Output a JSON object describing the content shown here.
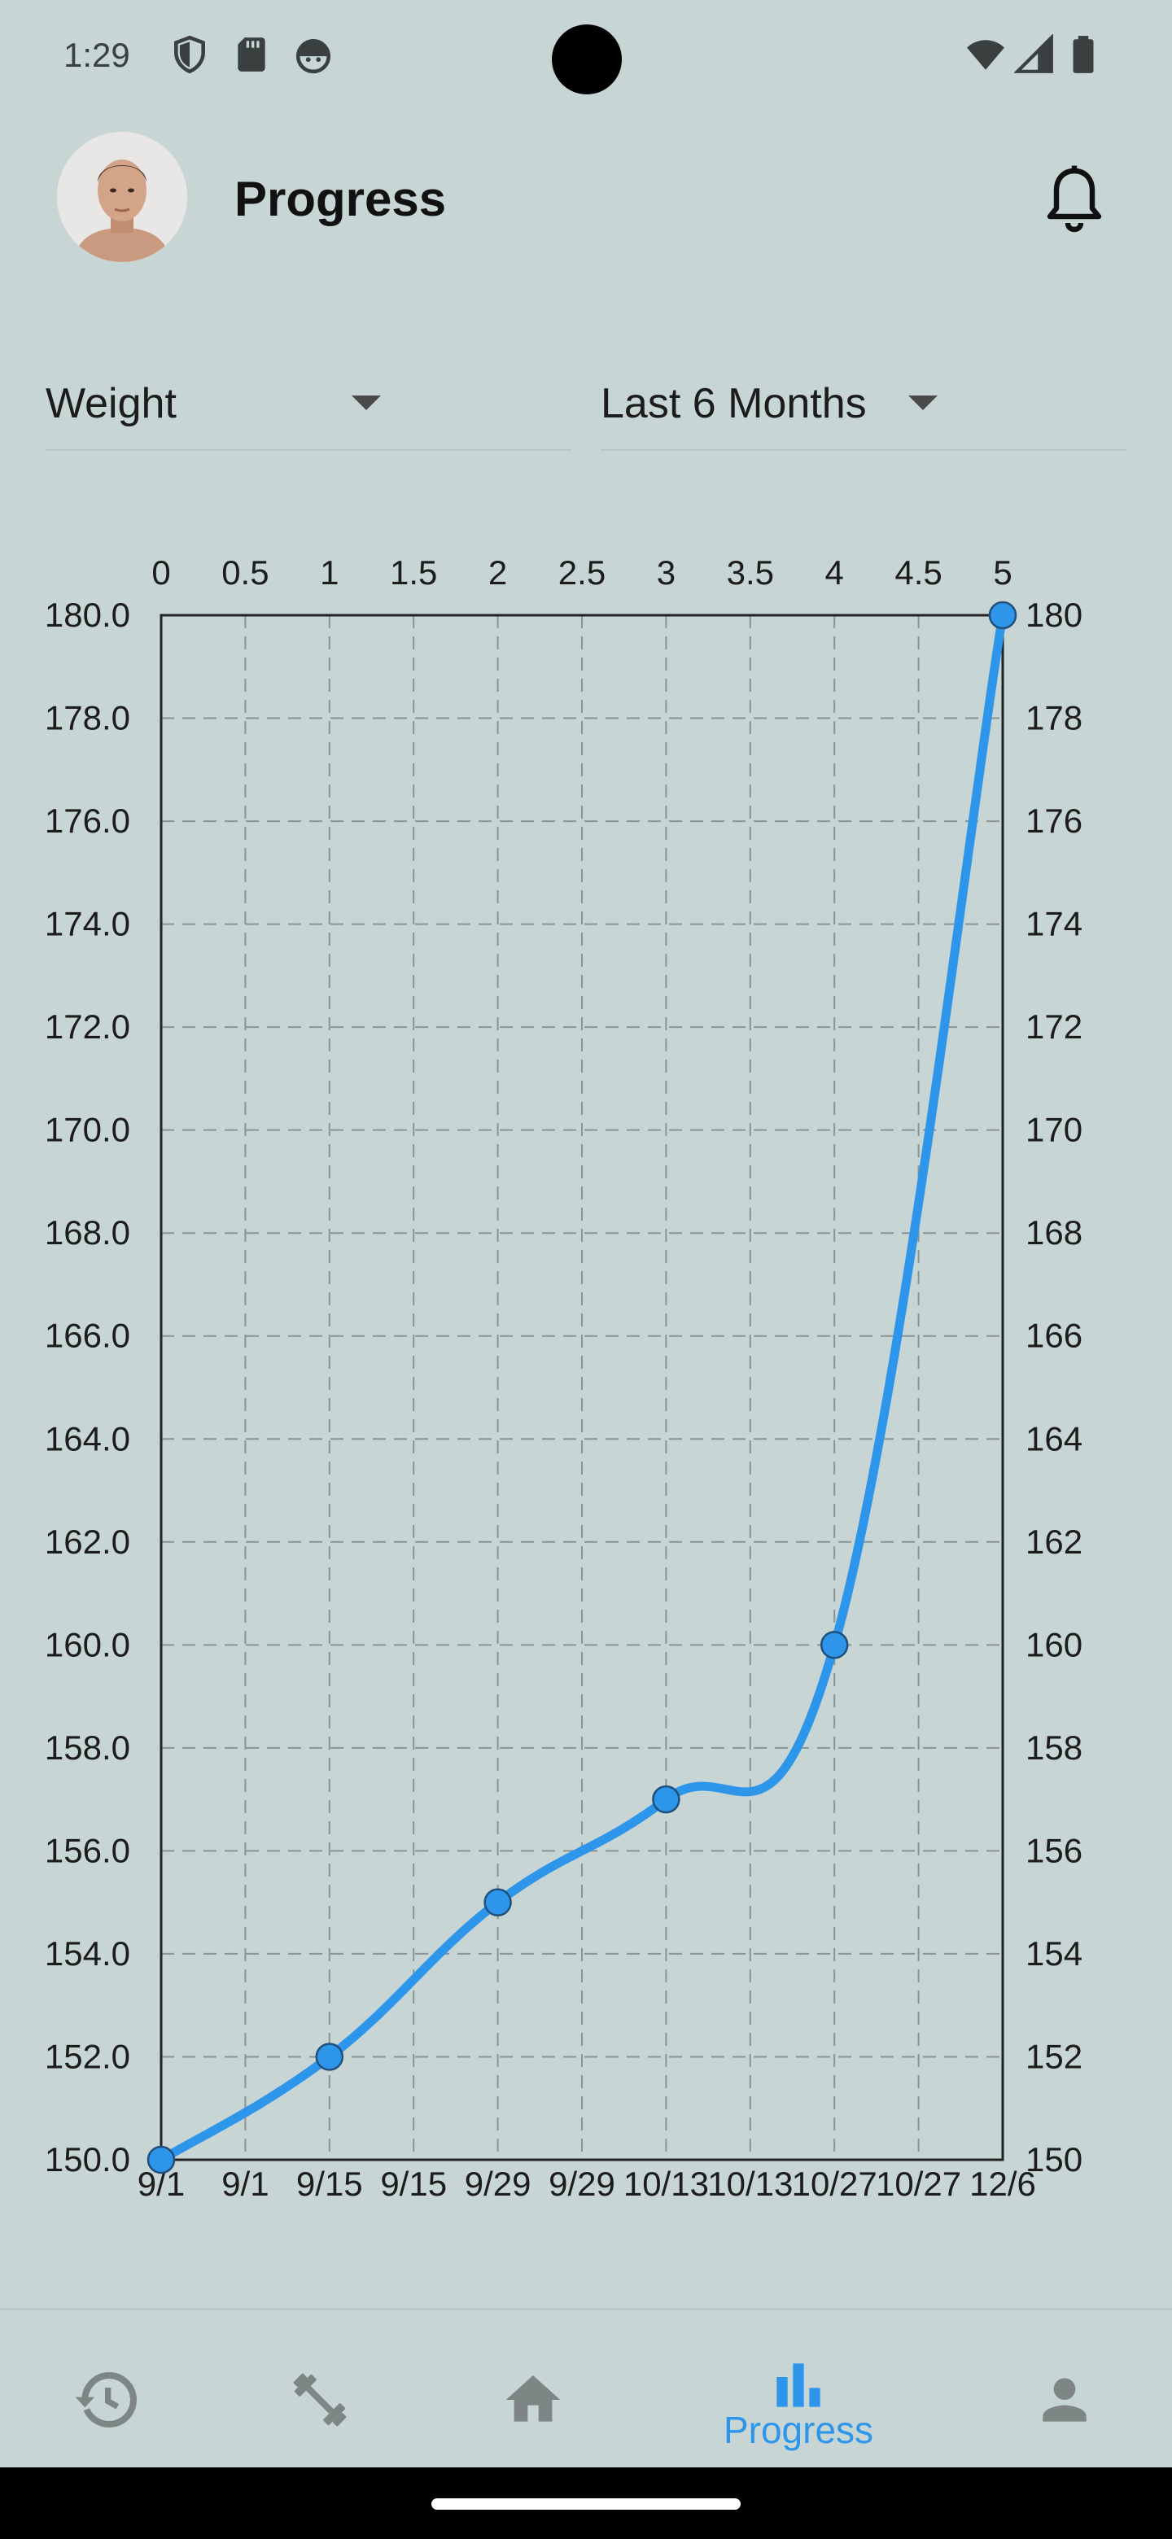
{
  "status_bar": {
    "time": "1:29",
    "left_icons": [
      "shield-icon",
      "sd-card-icon",
      "android-icon"
    ],
    "right_icons": [
      "wifi-icon",
      "signal-icon",
      "battery-icon"
    ]
  },
  "header": {
    "title": "Progress",
    "avatar": "profile-photo",
    "notification_icon": "bell-icon"
  },
  "filters": {
    "metric": {
      "value": "Weight"
    },
    "range": {
      "value": "Last 6 Months"
    }
  },
  "colors": {
    "background": "#c7d5d5",
    "accent": "#2e96ea",
    "inactive_icon": "#7d8585"
  },
  "chart_data": {
    "type": "line",
    "top_axis_ticks": [
      "0",
      "0.5",
      "1",
      "1.5",
      "2",
      "2.5",
      "3",
      "3.5",
      "4",
      "4.5",
      "5"
    ],
    "bottom_axis_ticks": [
      "9/1",
      "9/1",
      "9/15",
      "9/15",
      "9/29",
      "9/29",
      "10/13",
      "10/13",
      "10/27",
      "10/27",
      "12/6"
    ],
    "left_axis_ticks": [
      "180.0",
      "178.0",
      "176.0",
      "174.0",
      "172.0",
      "170.0",
      "168.0",
      "166.0",
      "164.0",
      "162.0",
      "160.0",
      "158.0",
      "156.0",
      "154.0",
      "152.0",
      "150.0"
    ],
    "right_axis_ticks": [
      "180",
      "178",
      "176",
      "174",
      "172",
      "170",
      "168",
      "166",
      "164",
      "162",
      "160",
      "158",
      "156",
      "154",
      "152",
      "150"
    ],
    "xlim": [
      0,
      5
    ],
    "ylim": [
      150,
      180
    ],
    "grid": true,
    "series": [
      {
        "x": [
          0,
          1,
          2,
          3,
          4,
          5
        ],
        "values": [
          150,
          152,
          155,
          157,
          160,
          180
        ],
        "color": "#2e96ea"
      }
    ]
  },
  "bottom_nav": {
    "items": [
      {
        "icon": "history-icon",
        "label": "",
        "active": false
      },
      {
        "icon": "dumbbell-icon",
        "label": "",
        "active": false
      },
      {
        "icon": "home-icon",
        "label": "",
        "active": false
      },
      {
        "icon": "bar-chart-icon",
        "label": "Progress",
        "active": true
      },
      {
        "icon": "person-icon",
        "label": "",
        "active": false
      }
    ]
  }
}
